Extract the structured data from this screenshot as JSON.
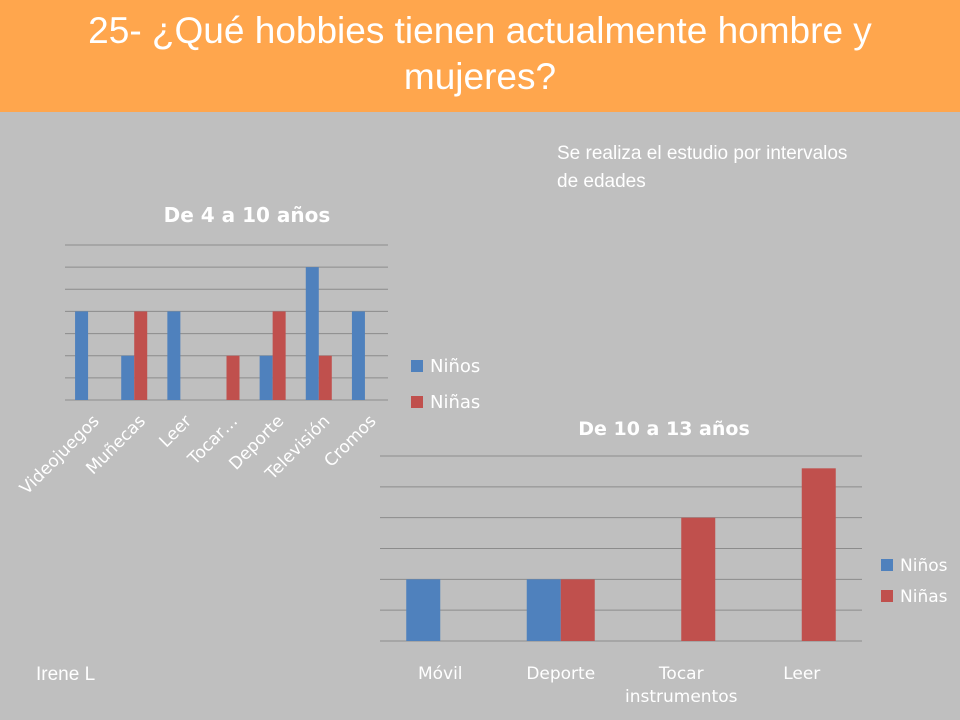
{
  "header": {
    "title": "25- ¿Qué hobbies tienen actualmente hombre y mujeres?"
  },
  "note": "Se realiza el estudio por intervalos de edades",
  "author": "Irene L",
  "colors": {
    "header_bg": "#ffa64d",
    "slide_bg": "#bfbfbf",
    "ninos": "#4f81bd",
    "ninas": "#c0504d"
  },
  "chart_data": [
    {
      "type": "bar",
      "title": "De 4 a 10 años",
      "categories": [
        "Videojuegos",
        "Muñecas",
        "Leer",
        "Tocar…",
        "Deporte",
        "Televisión",
        "Cromos"
      ],
      "series": [
        {
          "name": "Niños",
          "values": [
            4,
            2,
            4,
            0,
            2,
            6,
            4
          ]
        },
        {
          "name": "Niñas",
          "values": [
            0,
            4,
            0,
            2,
            4,
            2,
            0
          ]
        }
      ],
      "ylim": [
        0,
        7
      ],
      "grid": true,
      "legend": "right"
    },
    {
      "type": "bar",
      "title": "De 10 a 13 años",
      "categories": [
        "Móvil",
        "Deporte",
        "Tocar instrumentos",
        "Leer"
      ],
      "series": [
        {
          "name": "Niños",
          "values": [
            2,
            2,
            0,
            0
          ]
        },
        {
          "name": "Niñas",
          "values": [
            0,
            2,
            4,
            5.6
          ]
        }
      ],
      "ylim": [
        0,
        6
      ],
      "grid": true,
      "legend": "right"
    }
  ]
}
